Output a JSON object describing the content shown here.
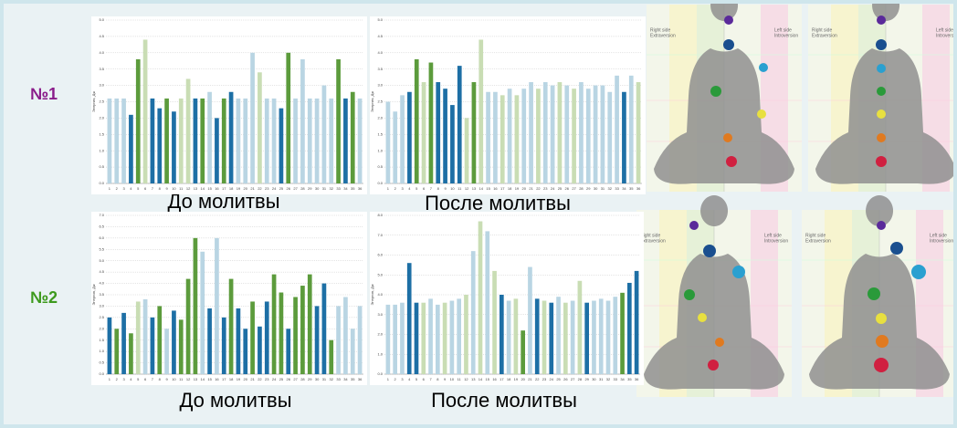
{
  "labels": {
    "row1": "№1",
    "row2": "№2",
    "before": "До молитвы",
    "after": "После молитвы",
    "right_side": "Right side",
    "extraversion": "Extraversion",
    "left_side": "Left side",
    "introversion": "Introversion"
  },
  "chart_data": [
    {
      "type": "bar",
      "ylabel": "Энергия, Дж",
      "categories": [
        "1",
        "2",
        "3",
        "4",
        "5",
        "6",
        "7",
        "8",
        "9",
        "10",
        "11",
        "12",
        "13",
        "14",
        "15",
        "16",
        "17",
        "18",
        "19",
        "20",
        "21",
        "22",
        "23",
        "24",
        "25",
        "26",
        "27",
        "28",
        "29",
        "30",
        "31",
        "32",
        "33",
        "34",
        "35",
        "36"
      ],
      "values": [
        2.6,
        2.6,
        2.6,
        2.1,
        3.8,
        4.4,
        2.6,
        2.3,
        2.6,
        2.2,
        2.6,
        3.2,
        2.6,
        2.6,
        2.8,
        2.0,
        2.6,
        2.8,
        2.6,
        2.6,
        4.0,
        3.4,
        2.6,
        2.6,
        2.3,
        4.0,
        2.6,
        3.8,
        2.6,
        2.6,
        3.0,
        2.6,
        3.8,
        2.6,
        2.8,
        2.6
      ],
      "colors": [
        "#b9d5e3",
        "#b9d5e3",
        "#b9d5e3",
        "#1d6fa5",
        "#5c9b3c",
        "#c9ddb4",
        "#1d6fa5",
        "#1d6fa5",
        "#5c9b3c",
        "#1d6fa5",
        "#c9ddb4",
        "#c9ddb4",
        "#1d6fa5",
        "#5c9b3c",
        "#b9d5e3",
        "#1d6fa5",
        "#5c9b3c",
        "#1d6fa5",
        "#b9d5e3",
        "#b9d5e3",
        "#b9d5e3",
        "#c9ddb4",
        "#b9d5e3",
        "#b9d5e3",
        "#1d6fa5",
        "#5c9b3c",
        "#b9d5e3",
        "#b9d5e3",
        "#b9d5e3",
        "#b9d5e3",
        "#b9d5e3",
        "#b9d5e3",
        "#5c9b3c",
        "#1d6fa5",
        "#5c9b3c",
        "#b9d5e3"
      ],
      "ylim": [
        0,
        5
      ],
      "yticks": [
        {
          "value": 0,
          "label": "0.0"
        },
        {
          "value": 0.5,
          "label": "0.5"
        },
        {
          "value": 1,
          "label": "1.0"
        },
        {
          "value": 1.5,
          "label": "1.5"
        },
        {
          "value": 2,
          "label": "2.0"
        },
        {
          "value": 2.5,
          "label": "2.5"
        },
        {
          "value": 3,
          "label": "3.0"
        },
        {
          "value": 3.5,
          "label": "3.5"
        },
        {
          "value": 4,
          "label": "4.0"
        },
        {
          "value": 4.5,
          "label": "4.5"
        },
        {
          "value": 5,
          "label": "5.0"
        }
      ]
    },
    {
      "type": "bar",
      "ylabel": "Энергия, Дж",
      "categories": [
        "1",
        "2",
        "3",
        "4",
        "5",
        "6",
        "7",
        "8",
        "9",
        "10",
        "11",
        "12",
        "13",
        "14",
        "15",
        "16",
        "17",
        "18",
        "19",
        "20",
        "21",
        "22",
        "23",
        "24",
        "25",
        "26",
        "27",
        "28",
        "29",
        "30",
        "31",
        "32",
        "33",
        "34",
        "35",
        "36"
      ],
      "values": [
        2.5,
        2.2,
        2.7,
        2.8,
        3.8,
        3.1,
        3.7,
        3.1,
        2.9,
        2.4,
        3.6,
        2.0,
        3.1,
        4.4,
        2.8,
        2.8,
        2.7,
        2.9,
        2.7,
        2.9,
        3.1,
        2.9,
        3.1,
        3.0,
        3.1,
        3.0,
        2.9,
        3.1,
        2.9,
        3.0,
        3.0,
        2.8,
        3.3,
        2.8,
        3.3,
        3.1
      ],
      "colors": [
        "#b9d5e3",
        "#b9d5e3",
        "#b9d5e3",
        "#1d6fa5",
        "#5c9b3c",
        "#c9ddb4",
        "#5c9b3c",
        "#1d6fa5",
        "#1d6fa5",
        "#1d6fa5",
        "#1d6fa5",
        "#c9ddb4",
        "#5c9b3c",
        "#c9ddb4",
        "#b9d5e3",
        "#b9d5e3",
        "#c9ddb4",
        "#b9d5e3",
        "#c9ddb4",
        "#b9d5e3",
        "#b9d5e3",
        "#c9ddb4",
        "#b9d5e3",
        "#b9d5e3",
        "#c9ddb4",
        "#b9d5e3",
        "#c9ddb4",
        "#b9d5e3",
        "#b9d5e3",
        "#b9d5e3",
        "#b9d5e3",
        "#b9d5e3",
        "#b9d5e3",
        "#1d6fa5",
        "#b9d5e3",
        "#c9ddb4"
      ],
      "ylim": [
        0,
        5
      ],
      "yticks": [
        {
          "value": 0,
          "label": "0.0"
        },
        {
          "value": 0.5,
          "label": "0.5"
        },
        {
          "value": 1,
          "label": "1.0"
        },
        {
          "value": 1.5,
          "label": "1.5"
        },
        {
          "value": 2,
          "label": "2.0"
        },
        {
          "value": 2.5,
          "label": "2.5"
        },
        {
          "value": 3,
          "label": "3.0"
        },
        {
          "value": 3.5,
          "label": "3.5"
        },
        {
          "value": 4,
          "label": "4.0"
        },
        {
          "value": 4.5,
          "label": "4.5"
        },
        {
          "value": 5,
          "label": "5.0"
        }
      ]
    },
    {
      "type": "bar",
      "ylabel": "Энергия, Дж",
      "categories": [
        "1",
        "2",
        "3",
        "4",
        "5",
        "6",
        "7",
        "8",
        "9",
        "10",
        "11",
        "12",
        "13",
        "14",
        "15",
        "16",
        "17",
        "18",
        "19",
        "20",
        "21",
        "22",
        "23",
        "24",
        "25",
        "26",
        "27",
        "28",
        "29",
        "30",
        "31",
        "32",
        "33",
        "34",
        "35",
        "36"
      ],
      "values": [
        2.5,
        2.0,
        2.7,
        1.8,
        3.2,
        3.3,
        2.5,
        3.0,
        2.0,
        2.8,
        2.4,
        4.2,
        6.0,
        5.4,
        2.9,
        6.0,
        2.5,
        4.2,
        2.9,
        2.0,
        3.2,
        2.1,
        3.2,
        4.4,
        3.6,
        2.0,
        3.4,
        3.9,
        4.4,
        3.0,
        4.0,
        1.5,
        3.0,
        3.4,
        2.0,
        3.0
      ],
      "colors": [
        "#1d6fa5",
        "#5c9b3c",
        "#1d6fa5",
        "#5c9b3c",
        "#c9ddb4",
        "#b9d5e3",
        "#1d6fa5",
        "#5c9b3c",
        "#b9d5e3",
        "#1d6fa5",
        "#5c9b3c",
        "#5c9b3c",
        "#5c9b3c",
        "#b9d5e3",
        "#1d6fa5",
        "#b9d5e3",
        "#1d6fa5",
        "#5c9b3c",
        "#1d6fa5",
        "#1d6fa5",
        "#5c9b3c",
        "#1d6fa5",
        "#1d6fa5",
        "#5c9b3c",
        "#5c9b3c",
        "#1d6fa5",
        "#5c9b3c",
        "#5c9b3c",
        "#5c9b3c",
        "#1d6fa5",
        "#1d6fa5",
        "#5c9b3c",
        "#b9d5e3",
        "#b9d5e3",
        "#b9d5e3",
        "#b9d5e3"
      ],
      "ylim": [
        0,
        7
      ],
      "yticks": [
        {
          "value": 0,
          "label": "0.0"
        },
        {
          "value": 0.5,
          "label": "0.5"
        },
        {
          "value": 1,
          "label": "1.0"
        },
        {
          "value": 1.5,
          "label": "1.5"
        },
        {
          "value": 2,
          "label": "2.0"
        },
        {
          "value": 2.5,
          "label": "2.5"
        },
        {
          "value": 3,
          "label": "3.0"
        },
        {
          "value": 3.5,
          "label": "3.5"
        },
        {
          "value": 4,
          "label": "4.0"
        },
        {
          "value": 4.5,
          "label": "4.5"
        },
        {
          "value": 5,
          "label": "5.0"
        },
        {
          "value": 5.5,
          "label": "5.5"
        },
        {
          "value": 6,
          "label": "6.0"
        },
        {
          "value": 6.5,
          "label": "6.5"
        },
        {
          "value": 7,
          "label": "7.0"
        }
      ]
    },
    {
      "type": "bar",
      "ylabel": "Энергия, Дж",
      "categories": [
        "1",
        "2",
        "3",
        "4",
        "5",
        "6",
        "7",
        "8",
        "9",
        "10",
        "11",
        "12",
        "13",
        "14",
        "15",
        "16",
        "17",
        "18",
        "19",
        "20",
        "21",
        "22",
        "23",
        "24",
        "25",
        "26",
        "27",
        "28",
        "29",
        "30",
        "31",
        "32",
        "33",
        "34",
        "35",
        "36"
      ],
      "values": [
        3.5,
        3.5,
        3.6,
        5.6,
        3.6,
        3.6,
        3.8,
        3.5,
        3.6,
        3.7,
        3.8,
        4.0,
        6.2,
        7.7,
        7.2,
        5.2,
        4.0,
        3.7,
        3.8,
        2.2,
        5.4,
        3.8,
        3.7,
        3.6,
        3.9,
        3.6,
        3.7,
        4.7,
        3.6,
        3.7,
        3.8,
        3.7,
        3.9,
        4.1,
        4.6,
        5.2
      ],
      "colors": [
        "#b9d5e3",
        "#b9d5e3",
        "#b9d5e3",
        "#1d6fa5",
        "#1d6fa5",
        "#c9ddb4",
        "#b9d5e3",
        "#b9d5e3",
        "#c9ddb4",
        "#b9d5e3",
        "#b9d5e3",
        "#c9ddb4",
        "#b9d5e3",
        "#c9ddb4",
        "#b9d5e3",
        "#c9ddb4",
        "#1d6fa5",
        "#b9d5e3",
        "#c9ddb4",
        "#5c9b3c",
        "#b9d5e3",
        "#1d6fa5",
        "#c9ddb4",
        "#1d6fa5",
        "#b9d5e3",
        "#c9ddb4",
        "#b9d5e3",
        "#c9ddb4",
        "#1d6fa5",
        "#b9d5e3",
        "#b9d5e3",
        "#b9d5e3",
        "#b9d5e3",
        "#5c9b3c",
        "#1d6fa5",
        "#1d6fa5"
      ],
      "ylim": [
        0,
        8
      ],
      "yticks": [
        {
          "value": 0,
          "label": "0.0"
        },
        {
          "value": 1,
          "label": "1.0"
        },
        {
          "value": 2,
          "label": "2.0"
        },
        {
          "value": 3,
          "label": "3.0"
        },
        {
          "value": 4,
          "label": "4.0"
        },
        {
          "value": 5,
          "label": "5.0"
        },
        {
          "value": 6,
          "label": "6.0"
        },
        {
          "value": 7,
          "label": "7.0"
        },
        {
          "value": 8,
          "label": "8.0"
        }
      ]
    }
  ]
}
